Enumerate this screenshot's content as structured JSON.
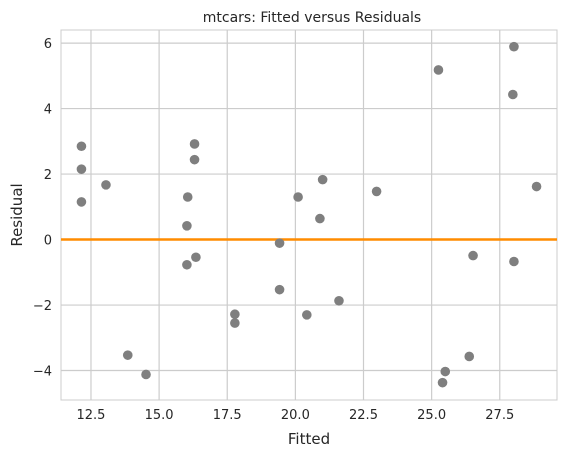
{
  "chart_data": {
    "type": "scatter",
    "title": "mtcars: Fitted versus Residuals",
    "xlabel": "Fitted",
    "ylabel": "Residual",
    "xlim": [
      11.4,
      29.6
    ],
    "ylim": [
      -4.9,
      6.4
    ],
    "xticks": [
      12.5,
      15.0,
      17.5,
      20.0,
      22.5,
      25.0,
      27.5
    ],
    "xtick_labels": [
      "12.5",
      "15.0",
      "17.5",
      "20.0",
      "22.5",
      "25.0",
      "27.5"
    ],
    "yticks": [
      -4,
      -2,
      0,
      2,
      4,
      6
    ],
    "ytick_labels": [
      "−4",
      "−2",
      "0",
      "2",
      "4",
      "6"
    ],
    "grid": true,
    "reference_line": {
      "y": 0,
      "color": "#ff8c00"
    },
    "point_color": "#7f7f7f",
    "points": [
      {
        "x": 12.15,
        "y": 2.85
      },
      {
        "x": 12.15,
        "y": 2.15
      },
      {
        "x": 12.15,
        "y": 1.15
      },
      {
        "x": 13.05,
        "y": 1.67
      },
      {
        "x": 13.85,
        "y": -3.53
      },
      {
        "x": 14.52,
        "y": -4.12
      },
      {
        "x": 16.05,
        "y": 1.3
      },
      {
        "x": 16.02,
        "y": 0.42
      },
      {
        "x": 16.02,
        "y": -0.77
      },
      {
        "x": 16.3,
        "y": 2.92
      },
      {
        "x": 16.3,
        "y": 2.44
      },
      {
        "x": 16.35,
        "y": -0.54
      },
      {
        "x": 17.78,
        "y": -2.28
      },
      {
        "x": 17.78,
        "y": -2.55
      },
      {
        "x": 19.42,
        "y": -0.11
      },
      {
        "x": 19.42,
        "y": -1.53
      },
      {
        "x": 20.1,
        "y": 1.3
      },
      {
        "x": 20.42,
        "y": -2.3
      },
      {
        "x": 20.9,
        "y": 0.64
      },
      {
        "x": 21.0,
        "y": 1.83
      },
      {
        "x": 21.6,
        "y": -1.87
      },
      {
        "x": 22.98,
        "y": 1.47
      },
      {
        "x": 25.25,
        "y": 5.18
      },
      {
        "x": 25.4,
        "y": -4.37
      },
      {
        "x": 25.5,
        "y": -4.03
      },
      {
        "x": 26.38,
        "y": -3.57
      },
      {
        "x": 26.52,
        "y": -0.49
      },
      {
        "x": 27.98,
        "y": 4.43
      },
      {
        "x": 28.02,
        "y": 5.89
      },
      {
        "x": 28.02,
        "y": -0.67
      },
      {
        "x": 28.85,
        "y": 1.62
      }
    ]
  }
}
